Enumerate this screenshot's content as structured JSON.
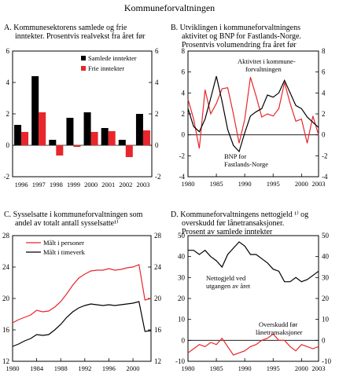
{
  "page_title": "Kommuneforvaltningen",
  "chart_data": [
    {
      "type": "bar",
      "panel": "A",
      "title_lines": [
        "A.  Kommunesektorens samlede og frie",
        "inntekter.  Prosentvis realvekst fra året før"
      ],
      "categories": [
        "1996",
        "1997",
        "1998",
        "1999",
        "2000",
        "2001",
        "2002",
        "2003"
      ],
      "series": [
        {
          "name": "Samlede inntekter",
          "color": "#000000",
          "values": [
            1.3,
            4.4,
            0.35,
            1.75,
            2.1,
            1.1,
            0.35,
            2.0
          ]
        },
        {
          "name": "Frie inntekter",
          "color": "#e8262b",
          "values": [
            0.85,
            2.1,
            -0.65,
            -0.1,
            0.85,
            0.9,
            -0.75,
            0.95
          ]
        }
      ],
      "ylim": [
        -2,
        6
      ],
      "y_ticks": [
        "-2",
        "0",
        "2",
        "4",
        "6"
      ],
      "legend_position": "top-right"
    },
    {
      "type": "line",
      "panel": "B",
      "title_lines": [
        "B.  Utviklingen i kommuneforvaltningens",
        "aktivitet og BNP for Fastlands-Norge.",
        "Prosentvis volumendring fra året før"
      ],
      "x_ticks": [
        "1980",
        "1985",
        "1990",
        "1995",
        "2000",
        "2003"
      ],
      "xlim": [
        1980,
        2003
      ],
      "ylim": [
        -4,
        8
      ],
      "y_ticks": [
        "-4",
        "-2",
        "0",
        "2",
        "4",
        "6",
        "8"
      ],
      "series": [
        {
          "name": "Aktivitet i kommuneforvaltningen",
          "label_lines": [
            "Aktivitet i kommune-",
            "forvaltningen"
          ],
          "color": "#e8262b",
          "x": [
            1980,
            1981,
            1982,
            1983,
            1984,
            1985,
            1986,
            1987,
            1988,
            1989,
            1990,
            1991,
            1992,
            1993,
            1994,
            1995,
            1996,
            1997,
            1998,
            1999,
            2000,
            2001,
            2002,
            2003
          ],
          "y": [
            3.4,
            1.5,
            -1.3,
            4.3,
            2.0,
            3.0,
            4.4,
            4.5,
            2.0,
            -0.8,
            1.5,
            5.5,
            3.7,
            1.7,
            2.0,
            1.8,
            2.5,
            5.0,
            3.0,
            1.3,
            1.5,
            -0.8,
            1.8,
            0.0
          ]
        },
        {
          "name": "BNP for Fastlands-Norge",
          "label_lines": [
            "BNP for",
            "Fastlands-Norge"
          ],
          "color": "#000000",
          "x": [
            1980,
            1981,
            1982,
            1983,
            1984,
            1985,
            1986,
            1987,
            1988,
            1989,
            1990,
            1991,
            1992,
            1993,
            1994,
            1995,
            1996,
            1997,
            1998,
            1999,
            2000,
            2001,
            2002,
            2003
          ],
          "y": [
            2.5,
            0.8,
            0.3,
            1.5,
            3.5,
            5.6,
            3.2,
            0.5,
            -1.0,
            -1.6,
            0.2,
            1.8,
            2.2,
            2.5,
            3.8,
            3.6,
            4.0,
            5.2,
            4.0,
            2.8,
            2.5,
            1.7,
            1.2,
            0.7
          ]
        }
      ]
    },
    {
      "type": "line",
      "panel": "C",
      "title_lines": [
        "C.  Sysselsatte i kommuneforvaltningen som",
        "andel av totalt antall sysselsatte¹⁾"
      ],
      "x_ticks": [
        "1980",
        "1984",
        "1988",
        "1992",
        "1996",
        "2000"
      ],
      "xlim": [
        1980,
        2003
      ],
      "ylim": [
        12,
        28
      ],
      "y_ticks": [
        "12",
        "16",
        "20",
        "24",
        "28"
      ],
      "series": [
        {
          "name": "Målt i personer",
          "color": "#e8262b",
          "x": [
            1980,
            1981,
            1982,
            1983,
            1984,
            1985,
            1986,
            1987,
            1988,
            1989,
            1990,
            1991,
            1992,
            1993,
            1994,
            1995,
            1996,
            1997,
            1998,
            1999,
            2000,
            2001,
            2002,
            2003
          ],
          "y": [
            16.9,
            17.3,
            17.6,
            17.9,
            18.5,
            18.3,
            18.4,
            18.9,
            19.6,
            20.6,
            21.7,
            22.6,
            23.1,
            23.5,
            23.6,
            23.6,
            23.8,
            23.6,
            23.7,
            23.9,
            24.0,
            24.3,
            19.8,
            20.0
          ]
        },
        {
          "name": "Målt i timeverk",
          "color": "#000000",
          "x": [
            1980,
            1981,
            1982,
            1983,
            1984,
            1985,
            1986,
            1987,
            1988,
            1989,
            1990,
            1991,
            1992,
            1993,
            1994,
            1995,
            1996,
            1997,
            1998,
            1999,
            2000,
            2001,
            2002,
            2003
          ],
          "y": [
            13.9,
            14.2,
            14.6,
            14.9,
            15.4,
            15.3,
            15.4,
            16.0,
            16.7,
            17.6,
            18.3,
            18.8,
            19.1,
            19.3,
            19.2,
            19.1,
            19.2,
            19.1,
            19.2,
            19.3,
            19.4,
            19.6,
            15.8,
            15.9
          ]
        }
      ],
      "legend_position": "top-left"
    },
    {
      "type": "line",
      "panel": "D",
      "title_lines": [
        "D.  Kommuneforvaltningens nettogjeld ¹⁾ og",
        "overskudd før lånetransaksjoner.",
        "Prosent av samlede inntekter"
      ],
      "x_ticks": [
        "1980",
        "1985",
        "1990",
        "1995",
        "2000",
        "2003"
      ],
      "xlim": [
        1980,
        2003
      ],
      "ylim": [
        -10,
        50
      ],
      "y_ticks": [
        "-10",
        "0",
        "10",
        "20",
        "30",
        "40",
        "50"
      ],
      "series": [
        {
          "name": "Nettogjeld ved utgangen av året",
          "label_lines": [
            "Nettogjeld ved",
            "utgangen av året"
          ],
          "color": "#000000",
          "x": [
            1980,
            1981,
            1982,
            1983,
            1984,
            1985,
            1986,
            1987,
            1988,
            1989,
            1990,
            1991,
            1992,
            1993,
            1994,
            1995,
            1996,
            1997,
            1998,
            1999,
            2000,
            2001,
            2002,
            2003
          ],
          "y": [
            43,
            43,
            41,
            43,
            40,
            38,
            35,
            41,
            44,
            47,
            45,
            41,
            41,
            39,
            37,
            34,
            33,
            28,
            28,
            30,
            28,
            29,
            31,
            33
          ]
        },
        {
          "name": "Overskudd før lånetransaksjoner",
          "label_lines": [
            "Overskudd før",
            "lånetransaksjoner"
          ],
          "color": "#e8262b",
          "x": [
            1980,
            1981,
            1982,
            1983,
            1984,
            1985,
            1986,
            1987,
            1988,
            1989,
            1990,
            1991,
            1992,
            1993,
            1994,
            1995,
            1996,
            1997,
            1998,
            1999,
            2000,
            2001,
            2002,
            2003
          ],
          "y": [
            -6,
            -4,
            -2,
            -3,
            -1,
            -2,
            1,
            -3,
            -7,
            -6,
            -5,
            -3,
            -2,
            0,
            1,
            3,
            0,
            0,
            -3,
            -5,
            -2,
            -3,
            -4,
            -3
          ]
        }
      ]
    }
  ]
}
